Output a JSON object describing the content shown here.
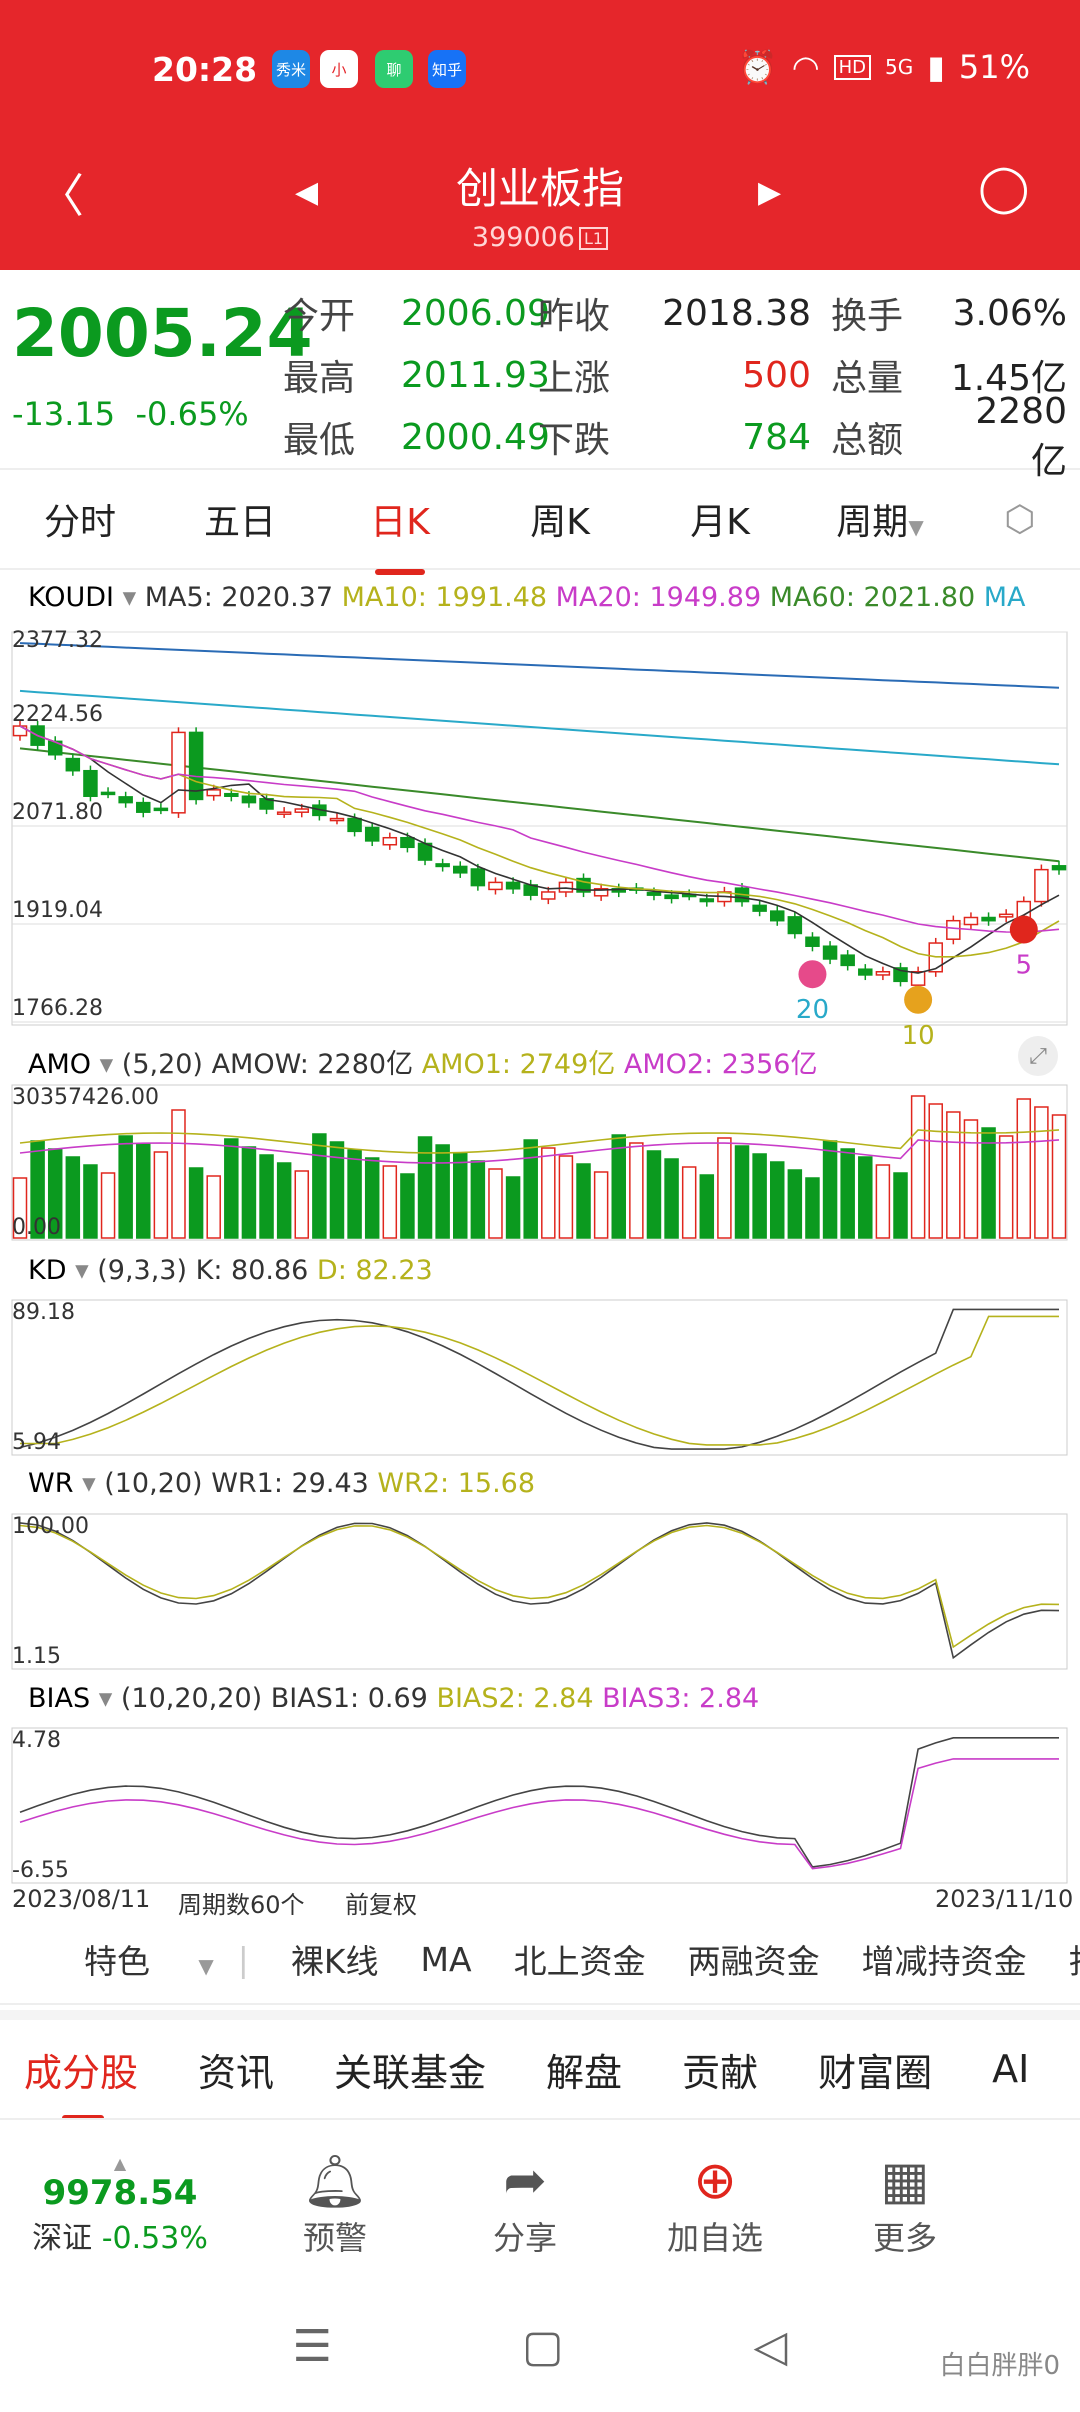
{
  "status": {
    "time": "20:28",
    "apps": [
      "秀米",
      "小",
      "聊",
      "知乎"
    ],
    "battery": "51%",
    "net": "5G",
    "hd": "HD"
  },
  "header": {
    "title": "创业板指",
    "code": "399006",
    "level": "L1"
  },
  "quote": {
    "price": "2005.24",
    "change": "-13.15",
    "change_pct": "-0.65%",
    "rows": [
      [
        {
          "l": "今开",
          "v": "2006.09",
          "c": "green"
        },
        {
          "l": "昨收",
          "v": "2018.38",
          "c": "black"
        },
        {
          "l": "换手",
          "v": "3.06%",
          "c": "black"
        }
      ],
      [
        {
          "l": "最高",
          "v": "2011.93",
          "c": "green"
        },
        {
          "l": "上涨",
          "v": "500",
          "c": "red"
        },
        {
          "l": "总量",
          "v": "1.45亿",
          "c": "black"
        }
      ],
      [
        {
          "l": "最低",
          "v": "2000.49",
          "c": "green"
        },
        {
          "l": "下跌",
          "v": "784",
          "c": "green"
        },
        {
          "l": "总额",
          "v": "2280亿",
          "c": "black"
        }
      ]
    ]
  },
  "tabs": [
    "分时",
    "五日",
    "日K",
    "周K",
    "月K",
    "周期"
  ],
  "active_tab": "日K",
  "kline": {
    "name": "KOUDI",
    "ma5": "MA5: 2020.37",
    "ma10": "MA10: 1991.48",
    "ma20": "MA20: 1949.89",
    "ma60": "MA60: 2021.80",
    "ma_more": "MA",
    "yticks": [
      "2377.32",
      "2224.56",
      "2071.80",
      "1919.04",
      "1766.28"
    ],
    "ylim": [
      1766.28,
      2377.32
    ],
    "marks": [
      "20",
      "10",
      "5"
    ]
  },
  "amo": {
    "name": "AMO",
    "params": "(5,20)",
    "amow": "AMOW: 2280亿",
    "amo1": "AMO1: 2749亿",
    "amo2": "AMO2: 2356亿",
    "ymax": "30357426.00",
    "ymin": "0.00"
  },
  "kd": {
    "name": "KD",
    "params": "(9,3,3)",
    "k": "K: 80.86",
    "d": "D: 82.23",
    "ymax": "89.18",
    "ymin": "5.94"
  },
  "wr": {
    "name": "WR",
    "params": "(10,20)",
    "wr1": "WR1: 29.43",
    "wr2": "WR2: 15.68",
    "ymax": "100.00",
    "ymin": "1.15"
  },
  "bias": {
    "name": "BIAS",
    "params": "(10,20,20)",
    "b1": "BIAS1: 0.69",
    "b2": "BIAS2: 2.84",
    "b3": "BIAS3: 2.84",
    "ymax": "4.78",
    "ymin": "-6.55"
  },
  "footer_axis": {
    "start": "2023/08/11",
    "count": "周期数60个",
    "adj": "前复权",
    "end": "2023/11/10"
  },
  "features": [
    "特色",
    "裸K线",
    "MA",
    "北上资金",
    "两融资金",
    "增减持资金",
    "打板"
  ],
  "sections": [
    "成分股",
    "资讯",
    "关联基金",
    "解盘",
    "贡献",
    "财富圈",
    "AI"
  ],
  "bottom": {
    "index_value": "9978.54",
    "index_name": "深证",
    "index_chg": "-0.53%",
    "buttons": [
      "预警",
      "分享",
      "加自选",
      "更多"
    ]
  },
  "watermark": "白白胖胖0",
  "colors": {
    "up": "#e0261d",
    "down": "#0b9a1f",
    "ma5": "#333333",
    "ma10": "#b5b21c",
    "ma20": "#c83cc8",
    "ma60": "#3a8a2a",
    "ma_long1": "#2a6bb5",
    "ma_long2": "#29a9c9"
  },
  "chart_data": {
    "type": "candlestick",
    "x_start": "2023/08/11",
    "x_end": "2023/11/10",
    "periods": 60,
    "close": [
      2230,
      2200,
      2185,
      2160,
      2120,
      2125,
      2110,
      2095,
      2100,
      2220,
      2115,
      2130,
      2120,
      2110,
      2100,
      2095,
      2100,
      2090,
      2085,
      2065,
      2050,
      2055,
      2040,
      2020,
      2010,
      2000,
      1980,
      1985,
      1975,
      1965,
      1970,
      1985,
      1970,
      1975,
      1970,
      1975,
      1965,
      1960,
      1965,
      1955,
      1970,
      1955,
      1940,
      1925,
      1905,
      1885,
      1865,
      1855,
      1840,
      1845,
      1830,
      1845,
      1890,
      1925,
      1930,
      1925,
      1935,
      1955,
      2005,
      2005
    ]
  }
}
